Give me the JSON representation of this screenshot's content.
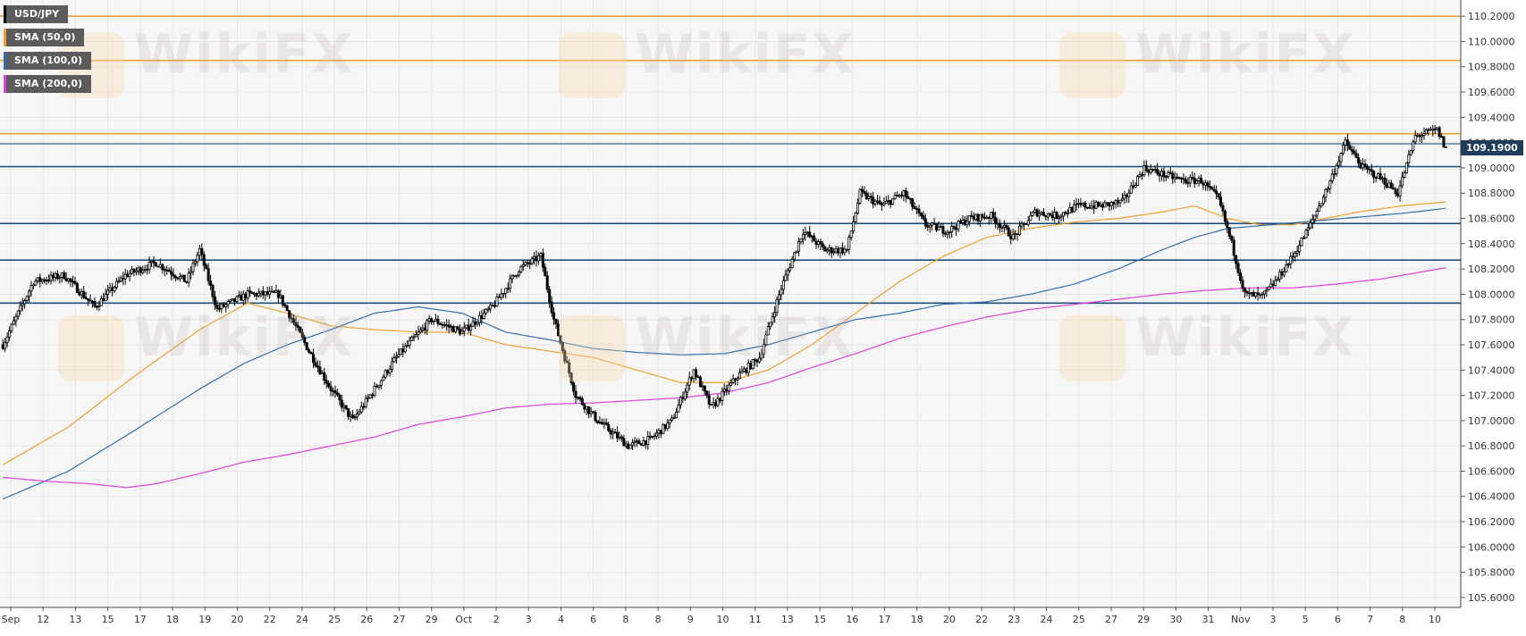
{
  "colors": {
    "background": "#ffffff",
    "plot_area": "#f6f6f6",
    "grid": "#e4e4e4",
    "bull_candle": "#ffffff",
    "bear_candle": "#000000",
    "sma50": "#f0a030",
    "sma100": "#2e6fb0",
    "sma200": "#e040e0",
    "resistance_line": "#f0a030",
    "support_line": "#1f4e7a",
    "price_line": "#1f3d5a",
    "watermark": "#c8b8b0"
  },
  "legend": [
    {
      "label": "USD/JPY",
      "color": "#000000"
    },
    {
      "label": "SMA (50,0)",
      "color": "#f0a030"
    },
    {
      "label": "SMA (100,0)",
      "color": "#2e6fb0"
    },
    {
      "label": "SMA (200,0)",
      "color": "#e040e0"
    }
  ],
  "watermark_text": "WikiFX",
  "current_price_label": "109.1900",
  "chart_data": {
    "type": "candlestick",
    "title": "USD/JPY",
    "ylim": [
      105.55,
      110.3
    ],
    "yticks": [
      "110.2000",
      "110.0000",
      "109.8000",
      "109.6000",
      "109.4000",
      "109.2000",
      "109.0000",
      "108.8000",
      "108.6000",
      "108.4000",
      "108.2000",
      "108.0000",
      "107.8000",
      "107.6000",
      "107.4000",
      "107.2000",
      "107.0000",
      "106.8000",
      "106.6000",
      "106.4000",
      "106.2000",
      "106.0000",
      "105.8000",
      "105.6000"
    ],
    "ytick_values": [
      110.2,
      110.0,
      109.8,
      109.6,
      109.4,
      109.2,
      109.0,
      108.8,
      108.6,
      108.4,
      108.2,
      108.0,
      107.8,
      107.6,
      107.4,
      107.2,
      107.0,
      106.8,
      106.6,
      106.4,
      106.2,
      106.0,
      105.8,
      105.6
    ],
    "x_labels": [
      "Sep",
      "12",
      "13",
      "15",
      "17",
      "18",
      "19",
      "20",
      "22",
      "24",
      "25",
      "26",
      "27",
      "29",
      "Oct",
      "2",
      "3",
      "4",
      "6",
      "8",
      "8",
      "9",
      "10",
      "11",
      "13",
      "15",
      "16",
      "17",
      "18",
      "20",
      "22",
      "23",
      "24",
      "25",
      "27",
      "29",
      "30",
      "31",
      "Nov",
      "3",
      "5",
      "6",
      "7",
      "8",
      "10"
    ],
    "horizontal_levels": [
      {
        "value": 110.2,
        "kind": "resistance"
      },
      {
        "value": 109.85,
        "kind": "resistance"
      },
      {
        "value": 109.27,
        "kind": "resistance"
      },
      {
        "value": 109.19,
        "kind": "current"
      },
      {
        "value": 109.01,
        "kind": "support"
      },
      {
        "value": 108.56,
        "kind": "support"
      },
      {
        "value": 108.27,
        "kind": "support"
      },
      {
        "value": 107.93,
        "kind": "support"
      }
    ],
    "price_key_points": [
      [
        0,
        107.6
      ],
      [
        14,
        108.1
      ],
      [
        28,
        108.15
      ],
      [
        42,
        107.9
      ],
      [
        56,
        108.15
      ],
      [
        70,
        108.25
      ],
      [
        84,
        108.1
      ],
      [
        90,
        108.35
      ],
      [
        98,
        107.88
      ],
      [
        112,
        108.0
      ],
      [
        126,
        108.0
      ],
      [
        140,
        107.55
      ],
      [
        150,
        107.25
      ],
      [
        160,
        107.0
      ],
      [
        180,
        107.5
      ],
      [
        196,
        107.8
      ],
      [
        210,
        107.7
      ],
      [
        224,
        107.9
      ],
      [
        236,
        108.2
      ],
      [
        246,
        108.3
      ],
      [
        252,
        107.8
      ],
      [
        262,
        107.2
      ],
      [
        272,
        107.0
      ],
      [
        286,
        106.8
      ],
      [
        296,
        106.85
      ],
      [
        306,
        107.0
      ],
      [
        316,
        107.4
      ],
      [
        324,
        107.1
      ],
      [
        336,
        107.35
      ],
      [
        346,
        107.5
      ],
      [
        356,
        108.05
      ],
      [
        366,
        108.5
      ],
      [
        376,
        108.35
      ],
      [
        386,
        108.35
      ],
      [
        392,
        108.8
      ],
      [
        402,
        108.7
      ],
      [
        412,
        108.8
      ],
      [
        422,
        108.55
      ],
      [
        432,
        108.5
      ],
      [
        442,
        108.6
      ],
      [
        452,
        108.62
      ],
      [
        462,
        108.45
      ],
      [
        472,
        108.65
      ],
      [
        482,
        108.62
      ],
      [
        492,
        108.7
      ],
      [
        502,
        108.7
      ],
      [
        512,
        108.73
      ],
      [
        522,
        109.0
      ],
      [
        530,
        108.95
      ],
      [
        540,
        108.9
      ],
      [
        548,
        108.9
      ],
      [
        556,
        108.75
      ],
      [
        562,
        108.4
      ],
      [
        568,
        108.0
      ],
      [
        576,
        107.98
      ],
      [
        582,
        108.1
      ],
      [
        590,
        108.3
      ],
      [
        598,
        108.55
      ],
      [
        606,
        108.85
      ],
      [
        614,
        109.2
      ],
      [
        622,
        109.0
      ],
      [
        630,
        108.92
      ],
      [
        638,
        108.8
      ],
      [
        646,
        109.25
      ],
      [
        656,
        109.3
      ],
      [
        660,
        109.15
      ]
    ],
    "sma50_points": [
      [
        0,
        106.65
      ],
      [
        30,
        106.95
      ],
      [
        60,
        107.35
      ],
      [
        90,
        107.72
      ],
      [
        112,
        107.93
      ],
      [
        130,
        107.85
      ],
      [
        150,
        107.75
      ],
      [
        170,
        107.72
      ],
      [
        190,
        107.7
      ],
      [
        210,
        107.7
      ],
      [
        230,
        107.6
      ],
      [
        250,
        107.55
      ],
      [
        270,
        107.5
      ],
      [
        290,
        107.4
      ],
      [
        310,
        107.3
      ],
      [
        330,
        107.3
      ],
      [
        350,
        107.4
      ],
      [
        370,
        107.6
      ],
      [
        390,
        107.85
      ],
      [
        410,
        108.1
      ],
      [
        430,
        108.3
      ],
      [
        450,
        108.45
      ],
      [
        470,
        108.52
      ],
      [
        490,
        108.57
      ],
      [
        510,
        108.6
      ],
      [
        530,
        108.65
      ],
      [
        545,
        108.7
      ],
      [
        560,
        108.6
      ],
      [
        575,
        108.55
      ],
      [
        590,
        108.55
      ],
      [
        605,
        108.6
      ],
      [
        620,
        108.65
      ],
      [
        640,
        108.7
      ],
      [
        660,
        108.73
      ]
    ],
    "sma100_points": [
      [
        0,
        106.38
      ],
      [
        30,
        106.6
      ],
      [
        60,
        106.92
      ],
      [
        90,
        107.25
      ],
      [
        110,
        107.45
      ],
      [
        130,
        107.6
      ],
      [
        150,
        107.72
      ],
      [
        170,
        107.85
      ],
      [
        190,
        107.9
      ],
      [
        210,
        107.85
      ],
      [
        230,
        107.7
      ],
      [
        250,
        107.64
      ],
      [
        270,
        107.57
      ],
      [
        290,
        107.54
      ],
      [
        310,
        107.52
      ],
      [
        330,
        107.53
      ],
      [
        350,
        107.6
      ],
      [
        370,
        107.7
      ],
      [
        390,
        107.8
      ],
      [
        410,
        107.85
      ],
      [
        430,
        107.92
      ],
      [
        450,
        107.94
      ],
      [
        470,
        108.0
      ],
      [
        490,
        108.08
      ],
      [
        510,
        108.2
      ],
      [
        530,
        108.35
      ],
      [
        545,
        108.45
      ],
      [
        560,
        108.52
      ],
      [
        580,
        108.55
      ],
      [
        600,
        108.58
      ],
      [
        620,
        108.61
      ],
      [
        640,
        108.64
      ],
      [
        660,
        108.68
      ]
    ],
    "sma200_points": [
      [
        0,
        106.55
      ],
      [
        20,
        106.52
      ],
      [
        40,
        106.5
      ],
      [
        57,
        106.47
      ],
      [
        70,
        106.5
      ],
      [
        90,
        106.58
      ],
      [
        110,
        106.67
      ],
      [
        130,
        106.73
      ],
      [
        150,
        106.8
      ],
      [
        170,
        106.87
      ],
      [
        190,
        106.97
      ],
      [
        210,
        107.03
      ],
      [
        230,
        107.1
      ],
      [
        250,
        107.13
      ],
      [
        270,
        107.14
      ],
      [
        290,
        107.16
      ],
      [
        310,
        107.18
      ],
      [
        330,
        107.22
      ],
      [
        350,
        107.3
      ],
      [
        370,
        107.42
      ],
      [
        390,
        107.53
      ],
      [
        410,
        107.65
      ],
      [
        430,
        107.74
      ],
      [
        450,
        107.82
      ],
      [
        470,
        107.88
      ],
      [
        490,
        107.92
      ],
      [
        510,
        107.96
      ],
      [
        530,
        108.0
      ],
      [
        550,
        108.03
      ],
      [
        570,
        108.05
      ],
      [
        590,
        108.05
      ],
      [
        610,
        108.08
      ],
      [
        630,
        108.12
      ],
      [
        660,
        108.21
      ]
    ],
    "grid": true,
    "legend_position": "top-left"
  }
}
